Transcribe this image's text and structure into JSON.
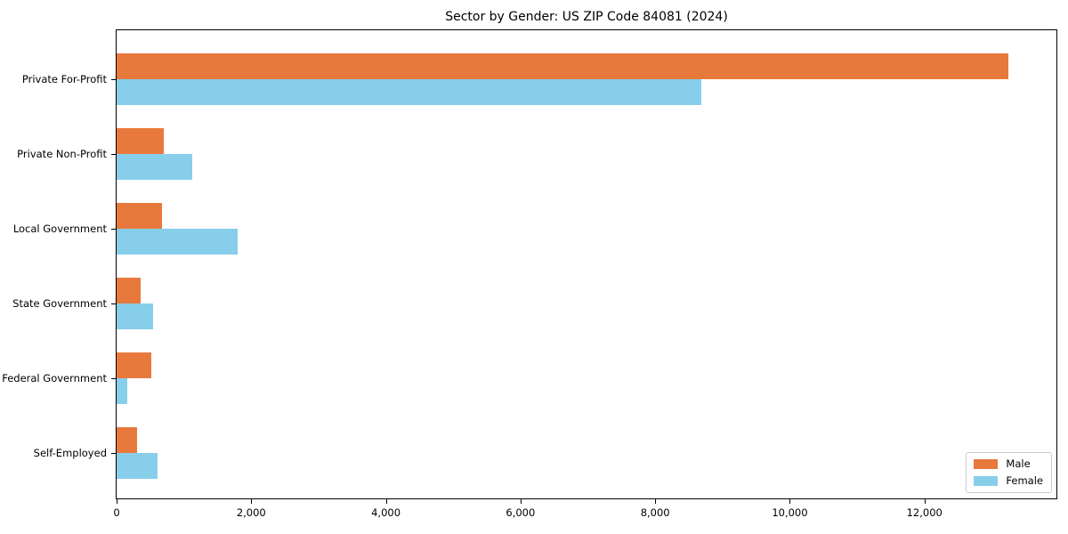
{
  "chart_data": {
    "type": "bar",
    "orientation": "horizontal",
    "title": "Sector by Gender: US ZIP Code 84081 (2024)",
    "categories": [
      "Private For-Profit",
      "Private Non-Profit",
      "Local Government",
      "State Government",
      "Federal Government",
      "Self-Employed"
    ],
    "series": [
      {
        "name": "Male",
        "color": "#e8793c",
        "values": [
          13250,
          700,
          670,
          360,
          510,
          300
        ]
      },
      {
        "name": "Female",
        "color": "#87ceeb",
        "values": [
          8690,
          1130,
          1800,
          540,
          160,
          610
        ]
      }
    ],
    "xlim": [
      0,
      13960
    ],
    "xticks": [
      0,
      2000,
      4000,
      6000,
      8000,
      10000,
      12000
    ],
    "xtick_labels": [
      "0",
      "2,000",
      "4,000",
      "6,000",
      "8,000",
      "10,000",
      "12,000"
    ],
    "xlabel": "",
    "ylabel": "",
    "grid": false,
    "legend_position": "lower right",
    "colors": {
      "male": "#e8793c",
      "female": "#87ceeb",
      "spine": "#000000",
      "legend_border": "#cccccc"
    }
  }
}
